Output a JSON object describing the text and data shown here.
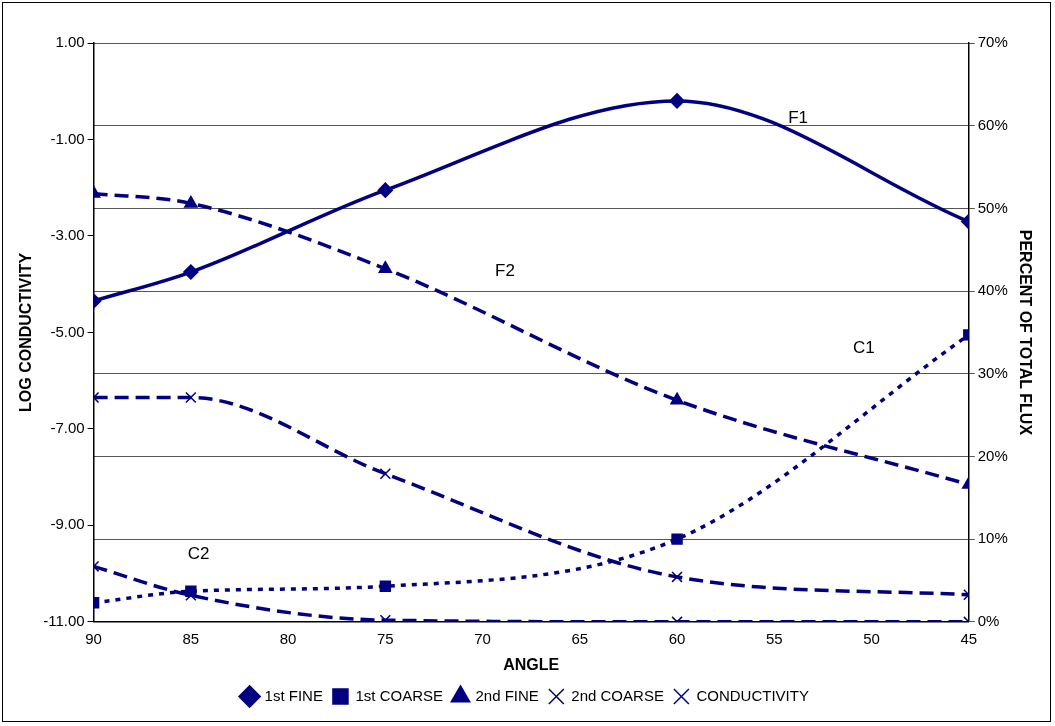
{
  "chart_data": {
    "type": "line",
    "xlabel": "ANGLE",
    "ylabel": "LOG CONDUCTIVITY",
    "y2label": "PERCENT OF TOTAL FLUX",
    "x": [
      90,
      85,
      75,
      60,
      45
    ],
    "xlim": [
      90,
      45
    ],
    "xticks": [
      90,
      85,
      80,
      75,
      70,
      65,
      60,
      55,
      50,
      45
    ],
    "ylim": [
      -11,
      1
    ],
    "yticks": [
      {
        "value": -11,
        "label": "-11.00"
      },
      {
        "value": -9,
        "label": "-9.00"
      },
      {
        "value": -7,
        "label": "-7.00"
      },
      {
        "value": -5,
        "label": "-5.00"
      },
      {
        "value": -3,
        "label": "-3.00"
      },
      {
        "value": -1,
        "label": "-1.00"
      },
      {
        "value": 1,
        "label": "1.00"
      }
    ],
    "y2lim": [
      0,
      70
    ],
    "y2ticks": [
      {
        "value": 0,
        "label": "0%"
      },
      {
        "value": 10,
        "label": "10%"
      },
      {
        "value": 20,
        "label": "20%"
      },
      {
        "value": 30,
        "label": "30%"
      },
      {
        "value": 40,
        "label": "40%"
      },
      {
        "value": 50,
        "label": "50%"
      },
      {
        "value": 60,
        "label": "60%"
      },
      {
        "value": 70,
        "label": "70%"
      }
    ],
    "grid": "y2",
    "legend": "bottom",
    "series": [
      {
        "name": "1st FINE",
        "color": "#000080",
        "axis": "y2",
        "marker": "diamond",
        "line_style": "solid",
        "values": [
          38.8,
          42.3,
          52.2,
          63.0,
          48.4
        ]
      },
      {
        "name": "1st COARSE",
        "color": "#000080",
        "axis": "y2",
        "marker": "square",
        "line_style": "dotted",
        "values": [
          2.3,
          3.7,
          4.3,
          10.0,
          34.7
        ]
      },
      {
        "name": "2nd FINE",
        "color": "#000080",
        "axis": "y2",
        "marker": "triangle",
        "line_style": "dashed",
        "values": [
          51.8,
          50.6,
          42.7,
          26.8,
          16.6
        ]
      },
      {
        "name": "2nd COARSE",
        "color": "#000080",
        "axis": "y2",
        "marker": "cross",
        "line_style": "dashed",
        "values": [
          6.7,
          3.2,
          0.2,
          0,
          0
        ]
      },
      {
        "name": "CONDUCTIVITY",
        "color": "#000080",
        "axis": "y",
        "marker": "cross",
        "line_style": "dashed",
        "values": [
          -6.35,
          -6.35,
          -7.93,
          -10.07,
          -10.44
        ]
      }
    ],
    "annotations": [
      "F1",
      "F2",
      "C1",
      "C2"
    ]
  }
}
